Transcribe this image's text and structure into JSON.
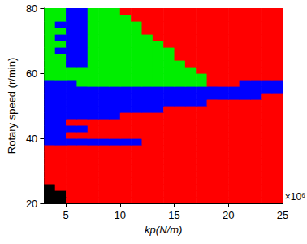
{
  "chart_data": {
    "type": "heatmap",
    "x_label": "kp(N/m)",
    "y_label": "Rotary speed (r/min)",
    "x_multiplier": "×10⁶",
    "xlim": [
      3,
      25
    ],
    "xticks": [
      5,
      10,
      15,
      20,
      25
    ],
    "ylim": [
      20,
      80
    ],
    "yticks": [
      20,
      40,
      60,
      80
    ],
    "grid": false,
    "colors": [
      "#000000",
      "#ff0000",
      "#0000ff",
      "#00ee00"
    ],
    "x_bins": [
      3,
      4,
      5,
      6,
      7,
      8,
      9,
      10,
      11,
      12,
      13,
      14,
      15,
      16,
      17,
      18,
      19,
      20,
      21,
      22,
      23,
      24,
      25
    ],
    "y_bins": [
      20,
      22,
      24,
      26,
      28,
      30,
      32,
      34,
      36,
      38,
      40,
      42,
      44,
      46,
      48,
      50,
      52,
      54,
      56,
      58,
      60,
      62,
      64,
      66,
      68,
      70,
      72,
      74,
      76,
      78,
      80
    ],
    "cells": [
      [
        0,
        0,
        1,
        1,
        1,
        1,
        1,
        1,
        1,
        1,
        1,
        1,
        1,
        1,
        1,
        1,
        1,
        1,
        1,
        1,
        1,
        1
      ],
      [
        0,
        0,
        1,
        1,
        1,
        1,
        1,
        1,
        1,
        1,
        1,
        1,
        1,
        1,
        1,
        1,
        1,
        1,
        1,
        1,
        1,
        1
      ],
      [
        0,
        1,
        1,
        1,
        1,
        1,
        1,
        1,
        1,
        1,
        1,
        1,
        1,
        1,
        1,
        1,
        1,
        1,
        1,
        1,
        1,
        1
      ],
      [
        1,
        1,
        1,
        1,
        1,
        1,
        1,
        1,
        1,
        1,
        1,
        1,
        1,
        1,
        1,
        1,
        1,
        1,
        1,
        1,
        1,
        1
      ],
      [
        1,
        1,
        1,
        1,
        1,
        1,
        1,
        1,
        1,
        1,
        1,
        1,
        1,
        1,
        1,
        1,
        1,
        1,
        1,
        1,
        1,
        1
      ],
      [
        1,
        1,
        1,
        1,
        1,
        1,
        1,
        1,
        1,
        1,
        1,
        1,
        1,
        1,
        1,
        1,
        1,
        1,
        1,
        1,
        1,
        1
      ],
      [
        1,
        1,
        1,
        1,
        1,
        1,
        1,
        1,
        1,
        1,
        1,
        1,
        1,
        1,
        1,
        1,
        1,
        1,
        1,
        1,
        1,
        1
      ],
      [
        1,
        1,
        1,
        1,
        1,
        1,
        1,
        1,
        1,
        1,
        1,
        1,
        1,
        1,
        1,
        1,
        1,
        1,
        1,
        1,
        1,
        1
      ],
      [
        1,
        1,
        1,
        1,
        1,
        1,
        1,
        1,
        1,
        1,
        1,
        1,
        1,
        1,
        1,
        1,
        1,
        1,
        1,
        1,
        1,
        1
      ],
      [
        2,
        2,
        2,
        2,
        2,
        2,
        2,
        2,
        2,
        1,
        1,
        1,
        1,
        1,
        1,
        1,
        1,
        1,
        1,
        1,
        1,
        1
      ],
      [
        2,
        2,
        1,
        1,
        1,
        1,
        1,
        1,
        1,
        1,
        1,
        1,
        1,
        1,
        1,
        1,
        1,
        1,
        1,
        1,
        1,
        1
      ],
      [
        2,
        2,
        2,
        2,
        1,
        1,
        1,
        1,
        1,
        1,
        1,
        1,
        1,
        1,
        1,
        1,
        1,
        1,
        1,
        1,
        1,
        1
      ],
      [
        2,
        2,
        1,
        1,
        1,
        1,
        1,
        1,
        1,
        1,
        1,
        1,
        1,
        1,
        1,
        1,
        1,
        1,
        1,
        1,
        1,
        1
      ],
      [
        2,
        2,
        2,
        2,
        2,
        2,
        2,
        1,
        1,
        1,
        1,
        1,
        1,
        1,
        1,
        1,
        1,
        1,
        1,
        1,
        1,
        1
      ],
      [
        2,
        2,
        2,
        2,
        2,
        2,
        2,
        2,
        2,
        2,
        2,
        1,
        1,
        1,
        1,
        1,
        1,
        1,
        1,
        1,
        1,
        1
      ],
      [
        2,
        2,
        2,
        2,
        2,
        2,
        2,
        2,
        2,
        2,
        2,
        2,
        2,
        2,
        2,
        1,
        1,
        1,
        1,
        1,
        1,
        1
      ],
      [
        2,
        2,
        2,
        2,
        2,
        2,
        2,
        2,
        2,
        2,
        2,
        2,
        2,
        2,
        2,
        2,
        2,
        2,
        2,
        2,
        1,
        1
      ],
      [
        2,
        2,
        2,
        2,
        2,
        2,
        2,
        2,
        2,
        2,
        2,
        2,
        2,
        2,
        2,
        2,
        2,
        2,
        2,
        2,
        2,
        2
      ],
      [
        2,
        2,
        2,
        3,
        3,
        3,
        3,
        3,
        3,
        3,
        3,
        3,
        3,
        3,
        3,
        1,
        1,
        1,
        2,
        2,
        2,
        2
      ],
      [
        3,
        3,
        3,
        3,
        3,
        3,
        3,
        3,
        3,
        3,
        3,
        3,
        3,
        3,
        3,
        1,
        1,
        1,
        1,
        1,
        1,
        1
      ],
      [
        3,
        3,
        3,
        3,
        3,
        3,
        3,
        3,
        3,
        3,
        3,
        3,
        3,
        3,
        1,
        1,
        1,
        1,
        1,
        1,
        1,
        1
      ],
      [
        3,
        3,
        2,
        2,
        3,
        3,
        3,
        3,
        3,
        3,
        3,
        3,
        3,
        1,
        1,
        1,
        1,
        1,
        1,
        1,
        1,
        1
      ],
      [
        3,
        3,
        2,
        2,
        3,
        3,
        3,
        3,
        3,
        3,
        3,
        3,
        1,
        1,
        1,
        1,
        1,
        1,
        1,
        1,
        1,
        1
      ],
      [
        3,
        2,
        2,
        2,
        3,
        3,
        3,
        3,
        3,
        3,
        3,
        3,
        1,
        1,
        1,
        1,
        1,
        1,
        1,
        1,
        1,
        1
      ],
      [
        3,
        3,
        2,
        2,
        3,
        3,
        3,
        3,
        3,
        3,
        3,
        1,
        1,
        1,
        1,
        1,
        1,
        1,
        1,
        1,
        1,
        1
      ],
      [
        3,
        2,
        2,
        2,
        3,
        3,
        3,
        3,
        3,
        3,
        1,
        1,
        1,
        1,
        1,
        1,
        1,
        1,
        1,
        1,
        1,
        1
      ],
      [
        3,
        3,
        2,
        2,
        3,
        3,
        3,
        3,
        3,
        1,
        1,
        1,
        1,
        1,
        1,
        1,
        1,
        1,
        1,
        1,
        1,
        1
      ],
      [
        3,
        2,
        2,
        2,
        3,
        3,
        3,
        3,
        3,
        1,
        1,
        1,
        1,
        1,
        1,
        1,
        1,
        1,
        1,
        1,
        1,
        1
      ],
      [
        3,
        3,
        2,
        2,
        3,
        3,
        3,
        3,
        1,
        1,
        1,
        1,
        1,
        1,
        1,
        1,
        1,
        1,
        1,
        1,
        1,
        1
      ],
      [
        3,
        3,
        2,
        2,
        3,
        3,
        3,
        1,
        1,
        1,
        1,
        1,
        1,
        1,
        1,
        1,
        1,
        1,
        1,
        1,
        1,
        1
      ]
    ]
  }
}
